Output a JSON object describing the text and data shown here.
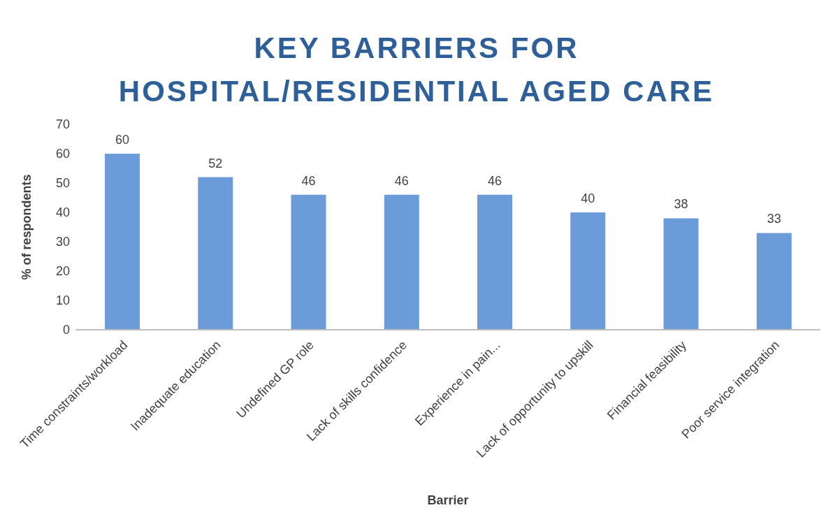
{
  "chart_data": {
    "type": "bar",
    "title": "KEY BARRIERS FOR\nHOSPITAL/RESIDENTIAL AGED CARE",
    "xlabel": "Barrier",
    "ylabel": "% of respondents",
    "categories": [
      "Time constraints/workload",
      "Inadequate education",
      "Undefined GP role",
      "Lack of skills confidence",
      "Experience in pain...",
      "Lack of opportunity to upskill",
      "Financial feasibility",
      "Poor service integration"
    ],
    "values": [
      60,
      52,
      46,
      46,
      46,
      40,
      38,
      33
    ],
    "color": "#6b9bd8",
    "ylim": [
      0,
      70
    ],
    "yticks": [
      0,
      10,
      20,
      30,
      40,
      50,
      60,
      70
    ],
    "grid": false,
    "data_labels": true
  }
}
